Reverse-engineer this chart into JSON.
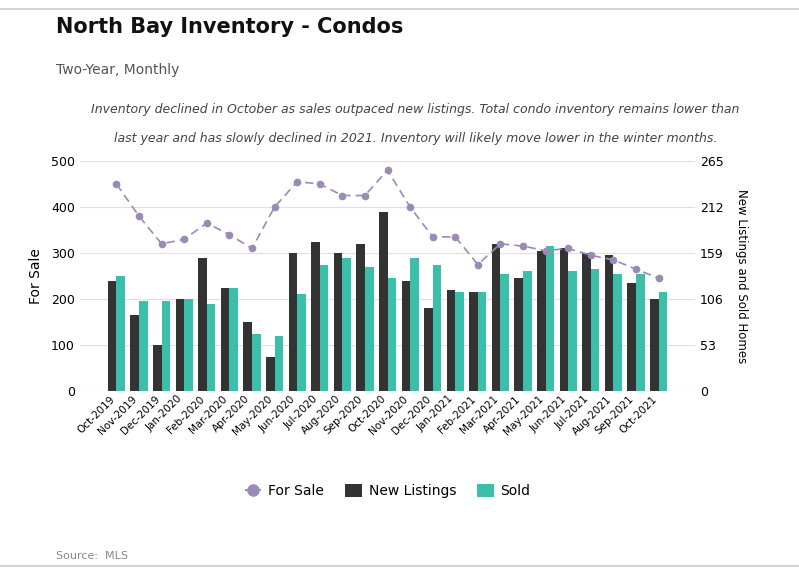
{
  "title": "North Bay Inventory - Condos",
  "subtitle": "Two-Year, Monthly",
  "annotation_line1": "Inventory declined in October as sales outpaced new listings. Total condo inventory remains lower than",
  "annotation_line2": "last year and has slowly declined in 2021. Inventory will likely move lower in the winter months.",
  "source": "Source:  MLS",
  "categories": [
    "Oct-2019",
    "Nov-2019",
    "Dec-2019",
    "Jan-2020",
    "Feb-2020",
    "Mar-2020",
    "Apr-2020",
    "May-2020",
    "Jun-2020",
    "Jul-2020",
    "Aug-2020",
    "Sep-2020",
    "Oct-2020",
    "Nov-2020",
    "Dec-2020",
    "Jan-2021",
    "Feb-2021",
    "Mar-2021",
    "Apr-2021",
    "May-2021",
    "Jun-2021",
    "Jul-2021",
    "Aug-2021",
    "Sep-2021",
    "Oct-2021"
  ],
  "for_sale": [
    450,
    380,
    320,
    330,
    365,
    340,
    310,
    400,
    455,
    450,
    425,
    425,
    480,
    400,
    335,
    335,
    275,
    320,
    315,
    305,
    310,
    295,
    285,
    265,
    245
  ],
  "new_listings": [
    240,
    165,
    100,
    200,
    290,
    225,
    150,
    75,
    300,
    325,
    300,
    320,
    390,
    240,
    180,
    220,
    215,
    320,
    245,
    305,
    310,
    300,
    295,
    235,
    200
  ],
  "sold": [
    250,
    195,
    195,
    200,
    190,
    225,
    125,
    120,
    210,
    275,
    290,
    270,
    245,
    290,
    275,
    215,
    215,
    255,
    260,
    315,
    260,
    265,
    255,
    255,
    215
  ],
  "for_sale_color": "#9b8bb4",
  "new_listings_color": "#333333",
  "sold_color": "#3cbfaa",
  "left_ylim": [
    0,
    500
  ],
  "left_yticks": [
    0,
    100,
    200,
    300,
    400,
    500
  ],
  "right_ylim": [
    0,
    265
  ],
  "right_yticks": [
    0,
    53,
    106,
    159,
    212,
    265
  ],
  "ylabel_left": "For Sale",
  "ylabel_right": "New Listings and Sold Homes",
  "background_color": "#ffffff",
  "grid_color": "#e0e0e0"
}
